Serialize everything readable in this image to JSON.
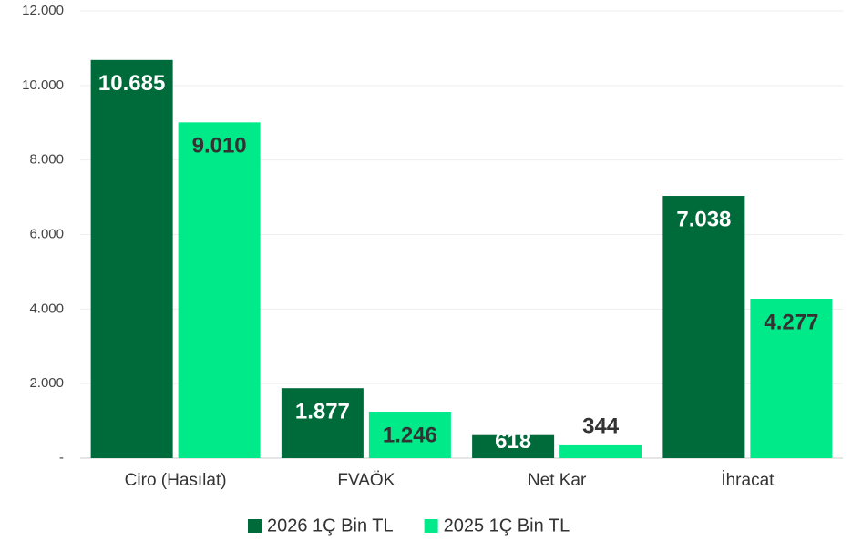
{
  "chart_data": {
    "type": "bar",
    "categories": [
      "Ciro (Hasılat)",
      "FVAÖK",
      "Net Kar",
      "İhracat"
    ],
    "series": [
      {
        "name": "2026 1Ç Bin TL",
        "color": "#006b3a",
        "values": [
          10685,
          1877,
          618,
          7038
        ],
        "value_labels": [
          "10.685",
          "1.877",
          "618",
          "7.038"
        ]
      },
      {
        "name": "2025 1Ç Bin TL",
        "color": "#00ea8a",
        "values": [
          9010,
          1246,
          344,
          4277
        ],
        "value_labels": [
          "9.010",
          "1.246",
          "344",
          "4.277"
        ]
      }
    ],
    "ylim": [
      0,
      12000
    ],
    "yticks": [
      {
        "value": 0,
        "label": "-"
      },
      {
        "value": 2000,
        "label": "2.000"
      },
      {
        "value": 4000,
        "label": "4.000"
      },
      {
        "value": 6000,
        "label": "6.000"
      },
      {
        "value": 8000,
        "label": "8.000"
      },
      {
        "value": 10000,
        "label": "10.000"
      },
      {
        "value": 12000,
        "label": "12.000"
      }
    ],
    "grid": true,
    "legend": "bottom"
  }
}
